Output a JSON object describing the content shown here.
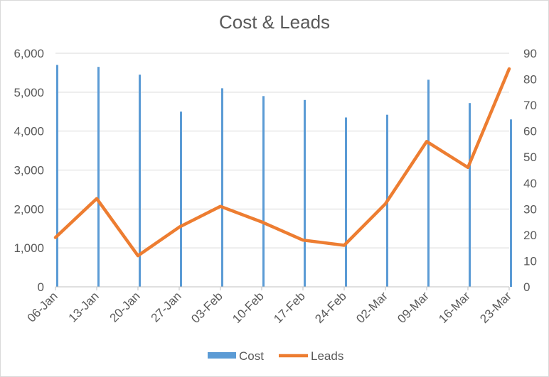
{
  "chart_data": {
    "type": "bar+line",
    "title": "Cost & Leads",
    "categories": [
      "06-Jan",
      "13-Jan",
      "20-Jan",
      "27-Jan",
      "03-Feb",
      "10-Feb",
      "17-Feb",
      "24-Feb",
      "02-Mar",
      "09-Mar",
      "16-Mar",
      "23-Mar"
    ],
    "series": [
      {
        "name": "Cost",
        "type": "bar",
        "axis": "left",
        "color": "#5b9bd5",
        "values": [
          5700,
          5650,
          5450,
          4500,
          5100,
          4900,
          4800,
          4350,
          4420,
          5320,
          4720,
          4300
        ]
      },
      {
        "name": "Leads",
        "type": "line",
        "axis": "right",
        "color": "#ed7d31",
        "values": [
          19,
          34,
          12,
          23,
          31,
          25,
          18,
          16,
          32,
          56,
          46,
          84
        ]
      }
    ],
    "y_left": {
      "min": 0,
      "max": 6000,
      "ticks": [
        0,
        1000,
        2000,
        3000,
        4000,
        5000,
        6000
      ],
      "tick_labels": [
        "0",
        "1,000",
        "2,000",
        "3,000",
        "4,000",
        "5,000",
        "6,000"
      ]
    },
    "y_right": {
      "min": 0,
      "max": 90,
      "ticks": [
        0,
        10,
        20,
        30,
        40,
        50,
        60,
        70,
        80,
        90
      ],
      "tick_labels": [
        "0",
        "10",
        "20",
        "30",
        "40",
        "50",
        "60",
        "70",
        "80",
        "90"
      ]
    },
    "grid": true,
    "legend": "bottom"
  }
}
